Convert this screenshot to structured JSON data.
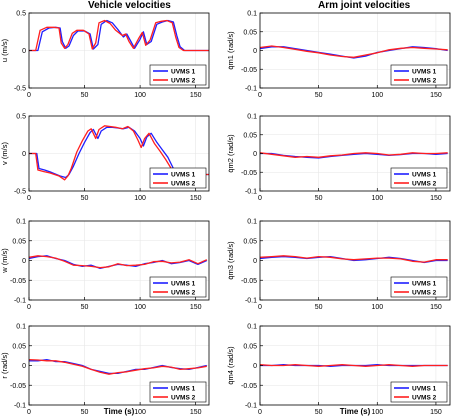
{
  "titles": {
    "left": "Vehicle velocities",
    "right": "Arm joint velocities",
    "xlabel": "Time (s)"
  },
  "legend": [
    "UVMS 1",
    "UVMS 2"
  ],
  "colors": {
    "uvms1": "#1f1fff",
    "uvms2": "#ff1f1f"
  },
  "xticks": [
    "0",
    "50",
    "100",
    "150"
  ],
  "chart_data": [
    {
      "type": "line",
      "ylabel": "u (m/s)",
      "xlim": [
        0,
        162
      ],
      "ylim": [
        -0.5,
        0.5
      ],
      "yticks": [
        "0.5",
        "0",
        "-0.5"
      ],
      "series": [
        {
          "name": "UVMS 1",
          "x": [
            0,
            8,
            12,
            18,
            24,
            28,
            30,
            33,
            36,
            40,
            44,
            50,
            55,
            58,
            62,
            65,
            70,
            75,
            80,
            85,
            88,
            91,
            95,
            100,
            103,
            106,
            110,
            115,
            120,
            125,
            130,
            133,
            136,
            140,
            145,
            150,
            155,
            162
          ],
          "y": [
            0,
            0,
            0.25,
            0.3,
            0.31,
            0.3,
            0.12,
            0.03,
            0.06,
            0.2,
            0.26,
            0.26,
            0.22,
            0.02,
            0.08,
            0.35,
            0.4,
            0.37,
            0.28,
            0.18,
            0.22,
            0.14,
            0.03,
            0.15,
            0.25,
            0.08,
            0.12,
            0.35,
            0.38,
            0.4,
            0.38,
            0.2,
            0.05,
            0,
            0,
            0,
            0,
            0
          ]
        },
        {
          "name": "UVMS 2",
          "x": [
            0,
            6,
            10,
            16,
            22,
            27,
            29,
            32,
            35,
            39,
            43,
            49,
            54,
            57,
            60,
            63,
            68,
            73,
            78,
            84,
            87,
            90,
            94,
            99,
            102,
            105,
            109,
            114,
            119,
            124,
            129,
            132,
            135,
            139,
            145,
            150,
            155,
            162
          ],
          "y": [
            0,
            0,
            0.27,
            0.31,
            0.31,
            0.3,
            0.1,
            0.03,
            0.08,
            0.23,
            0.27,
            0.27,
            0.22,
            0.02,
            0.1,
            0.37,
            0.4,
            0.36,
            0.27,
            0.2,
            0.22,
            0.12,
            0.03,
            0.17,
            0.24,
            0.07,
            0.14,
            0.37,
            0.39,
            0.4,
            0.37,
            0.18,
            0.04,
            0,
            0,
            0,
            0,
            0
          ]
        }
      ]
    },
    {
      "type": "line",
      "ylabel": "v (m/s)",
      "xlim": [
        0,
        162
      ],
      "ylim": [
        -0.5,
        0.5
      ],
      "yticks": [
        "0.5",
        "0",
        "-0.5"
      ],
      "series": [
        {
          "name": "UVMS 1",
          "x": [
            0,
            7,
            9,
            14,
            20,
            28,
            33,
            36,
            40,
            45,
            50,
            55,
            58,
            62,
            65,
            70,
            75,
            80,
            85,
            90,
            95,
            100,
            103,
            106,
            110,
            115,
            120,
            125,
            130,
            135,
            140,
            145,
            150,
            155,
            162
          ],
          "y": [
            0,
            0,
            -0.2,
            -0.22,
            -0.25,
            -0.3,
            -0.32,
            -0.28,
            -0.17,
            0,
            0.15,
            0.28,
            0.32,
            0.2,
            0.3,
            0.35,
            0.35,
            0.34,
            0.33,
            0.35,
            0.3,
            0.2,
            0.1,
            0.22,
            0.27,
            0.15,
            0.05,
            -0.05,
            -0.2,
            -0.22,
            -0.25,
            -0.27,
            -0.28,
            -0.28,
            -0.28
          ]
        },
        {
          "name": "UVMS 2",
          "x": [
            0,
            6,
            8,
            13,
            19,
            27,
            32,
            35,
            38,
            43,
            48,
            53,
            56,
            60,
            63,
            68,
            73,
            78,
            84,
            89,
            94,
            98,
            101,
            104,
            108,
            113,
            118,
            123,
            128,
            133,
            138,
            143,
            150,
            155,
            162
          ],
          "y": [
            0,
            0,
            -0.22,
            -0.24,
            -0.26,
            -0.3,
            -0.35,
            -0.3,
            -0.2,
            0.02,
            0.17,
            0.3,
            0.33,
            0.2,
            0.32,
            0.37,
            0.36,
            0.35,
            0.33,
            0.36,
            0.3,
            0.18,
            0.08,
            0.2,
            0.27,
            0.13,
            0.03,
            -0.08,
            -0.2,
            -0.23,
            -0.26,
            -0.27,
            -0.28,
            -0.28,
            -0.28
          ]
        }
      ]
    },
    {
      "type": "line",
      "ylabel": "w (m/s)",
      "xlim": [
        0,
        162
      ],
      "ylim": [
        -0.1,
        0.1
      ],
      "yticks": [
        "0.1",
        "0.05",
        "0",
        "-0.05",
        "-0.1"
      ],
      "series": [
        {
          "name": "UVMS 1",
          "x": [
            0,
            8,
            16,
            24,
            32,
            40,
            48,
            56,
            64,
            72,
            80,
            88,
            96,
            104,
            112,
            120,
            128,
            136,
            144,
            152,
            160
          ],
          "y": [
            0.005,
            0.01,
            0.012,
            0.005,
            0,
            -0.01,
            -0.015,
            -0.012,
            -0.02,
            -0.015,
            -0.01,
            -0.012,
            -0.015,
            -0.008,
            -0.005,
            0,
            -0.008,
            -0.005,
            0,
            -0.01,
            0
          ]
        },
        {
          "name": "UVMS 2",
          "x": [
            0,
            8,
            16,
            24,
            32,
            40,
            48,
            56,
            64,
            72,
            80,
            88,
            96,
            104,
            112,
            120,
            128,
            136,
            144,
            152,
            160
          ],
          "y": [
            0.008,
            0.012,
            0.01,
            0.006,
            -0.002,
            -0.012,
            -0.013,
            -0.015,
            -0.018,
            -0.016,
            -0.008,
            -0.013,
            -0.012,
            -0.01,
            -0.003,
            -0.002,
            -0.006,
            -0.004,
            0.002,
            -0.008,
            0.002
          ]
        }
      ]
    },
    {
      "type": "line",
      "ylabel": "r (rad/s)",
      "xlim": [
        0,
        162
      ],
      "ylim": [
        -0.1,
        0.1
      ],
      "yticks": [
        "0.1",
        "0.05",
        "0",
        "-0.05",
        "-0.1"
      ],
      "series": [
        {
          "name": "UVMS 1",
          "x": [
            0,
            8,
            16,
            24,
            32,
            40,
            48,
            56,
            64,
            72,
            80,
            88,
            96,
            104,
            112,
            120,
            128,
            136,
            144,
            152,
            160
          ],
          "y": [
            0.012,
            0.012,
            0.015,
            0.01,
            0.01,
            0.005,
            0,
            -0.01,
            -0.015,
            -0.02,
            -0.02,
            -0.015,
            -0.01,
            -0.01,
            -0.005,
            0,
            -0.005,
            -0.008,
            -0.01,
            -0.005,
            0
          ]
        },
        {
          "name": "UVMS 2",
          "x": [
            0,
            8,
            16,
            24,
            32,
            40,
            48,
            56,
            64,
            72,
            80,
            88,
            96,
            104,
            112,
            120,
            128,
            136,
            144,
            152,
            160
          ],
          "y": [
            0.015,
            0.014,
            0.012,
            0.012,
            0.008,
            0.003,
            -0.002,
            -0.01,
            -0.017,
            -0.022,
            -0.018,
            -0.016,
            -0.012,
            -0.008,
            -0.006,
            -0.002,
            -0.004,
            -0.01,
            -0.008,
            -0.006,
            -0.002
          ]
        }
      ]
    },
    {
      "type": "line",
      "ylabel": "q̇m1 (rad/s)",
      "xlim": [
        0,
        162
      ],
      "ylim": [
        -0.1,
        0.1
      ],
      "yticks": [
        "0.1",
        "0.05",
        "0",
        "-0.05",
        "-0.1"
      ],
      "series": [
        {
          "name": "UVMS 1",
          "x": [
            0,
            10,
            20,
            30,
            40,
            50,
            60,
            70,
            80,
            90,
            100,
            110,
            120,
            130,
            140,
            150,
            160
          ],
          "y": [
            0.005,
            0.01,
            0.01,
            0.005,
            0,
            -0.005,
            -0.01,
            -0.015,
            -0.02,
            -0.015,
            -0.005,
            0,
            0.005,
            0.01,
            0.008,
            0.005,
            0
          ]
        },
        {
          "name": "UVMS 2",
          "x": [
            0,
            10,
            20,
            30,
            40,
            50,
            60,
            70,
            80,
            90,
            100,
            110,
            120,
            130,
            140,
            150,
            160
          ],
          "y": [
            0.008,
            0.012,
            0.008,
            0.003,
            -0.002,
            -0.006,
            -0.012,
            -0.016,
            -0.018,
            -0.012,
            -0.006,
            0.002,
            0.006,
            0.008,
            0.006,
            0.004,
            0.002
          ]
        }
      ]
    },
    {
      "type": "line",
      "ylabel": "q̇m2 (rad/s)",
      "xlim": [
        0,
        162
      ],
      "ylim": [
        -0.1,
        0.1
      ],
      "yticks": [
        "0.1",
        "0.05",
        "0",
        "-0.05",
        "-0.1"
      ],
      "series": [
        {
          "name": "UVMS 1",
          "x": [
            0,
            10,
            20,
            30,
            40,
            50,
            60,
            70,
            80,
            90,
            100,
            110,
            120,
            130,
            140,
            150,
            160
          ],
          "y": [
            0,
            0,
            -0.005,
            -0.008,
            -0.01,
            -0.012,
            -0.008,
            -0.005,
            -0.002,
            0,
            -0.002,
            -0.005,
            -0.003,
            0,
            0,
            -0.002,
            0
          ]
        },
        {
          "name": "UVMS 2",
          "x": [
            0,
            10,
            20,
            30,
            40,
            50,
            60,
            70,
            80,
            90,
            100,
            110,
            120,
            130,
            140,
            150,
            160
          ],
          "y": [
            0.002,
            -0.002,
            -0.006,
            -0.01,
            -0.008,
            -0.01,
            -0.006,
            -0.004,
            0,
            0.002,
            0,
            -0.004,
            -0.002,
            0.002,
            0,
            0,
            0.002
          ]
        }
      ]
    },
    {
      "type": "line",
      "ylabel": "q̇m3 (rad/s)",
      "xlim": [
        0,
        162
      ],
      "ylim": [
        -0.1,
        0.1
      ],
      "yticks": [
        "0.1",
        "0.05",
        "0",
        "-0.05",
        "-0.1"
      ],
      "series": [
        {
          "name": "UVMS 1",
          "x": [
            0,
            10,
            20,
            30,
            40,
            50,
            60,
            70,
            80,
            90,
            100,
            110,
            120,
            130,
            140,
            150,
            160
          ],
          "y": [
            0.005,
            0.008,
            0.01,
            0.008,
            0.005,
            0.008,
            0.01,
            0.005,
            0,
            0.002,
            0.005,
            0.008,
            0.005,
            0,
            -0.005,
            0,
            0
          ]
        },
        {
          "name": "UVMS 2",
          "x": [
            0,
            10,
            20,
            30,
            40,
            50,
            60,
            70,
            80,
            90,
            100,
            110,
            120,
            130,
            140,
            150,
            160
          ],
          "y": [
            0.008,
            0.01,
            0.012,
            0.01,
            0.006,
            0.01,
            0.008,
            0.004,
            0.002,
            0.004,
            0.006,
            0.006,
            0.004,
            -0.002,
            -0.004,
            0.002,
            0.002
          ]
        }
      ]
    },
    {
      "type": "line",
      "ylabel": "q̇m4 (rad/s)",
      "xlim": [
        0,
        162
      ],
      "ylim": [
        -0.1,
        0.1
      ],
      "yticks": [
        "0.1",
        "0.05",
        "0",
        "-0.05",
        "-0.1"
      ],
      "series": [
        {
          "name": "UVMS 1",
          "x": [
            0,
            10,
            20,
            30,
            40,
            50,
            60,
            70,
            80,
            90,
            100,
            110,
            120,
            130,
            140,
            150,
            160
          ],
          "y": [
            0,
            0,
            0.002,
            0,
            0,
            0,
            -0.002,
            0,
            0,
            0,
            0.002,
            0,
            0,
            0,
            0,
            0,
            0
          ]
        },
        {
          "name": "UVMS 2",
          "x": [
            0,
            10,
            20,
            30,
            40,
            50,
            60,
            70,
            80,
            90,
            100,
            110,
            120,
            130,
            140,
            150,
            160
          ],
          "y": [
            0.002,
            0,
            0,
            0.002,
            0,
            -0.002,
            0,
            0.002,
            0,
            -0.002,
            0,
            0.002,
            0,
            -0.002,
            0,
            0,
            0
          ]
        }
      ]
    }
  ]
}
